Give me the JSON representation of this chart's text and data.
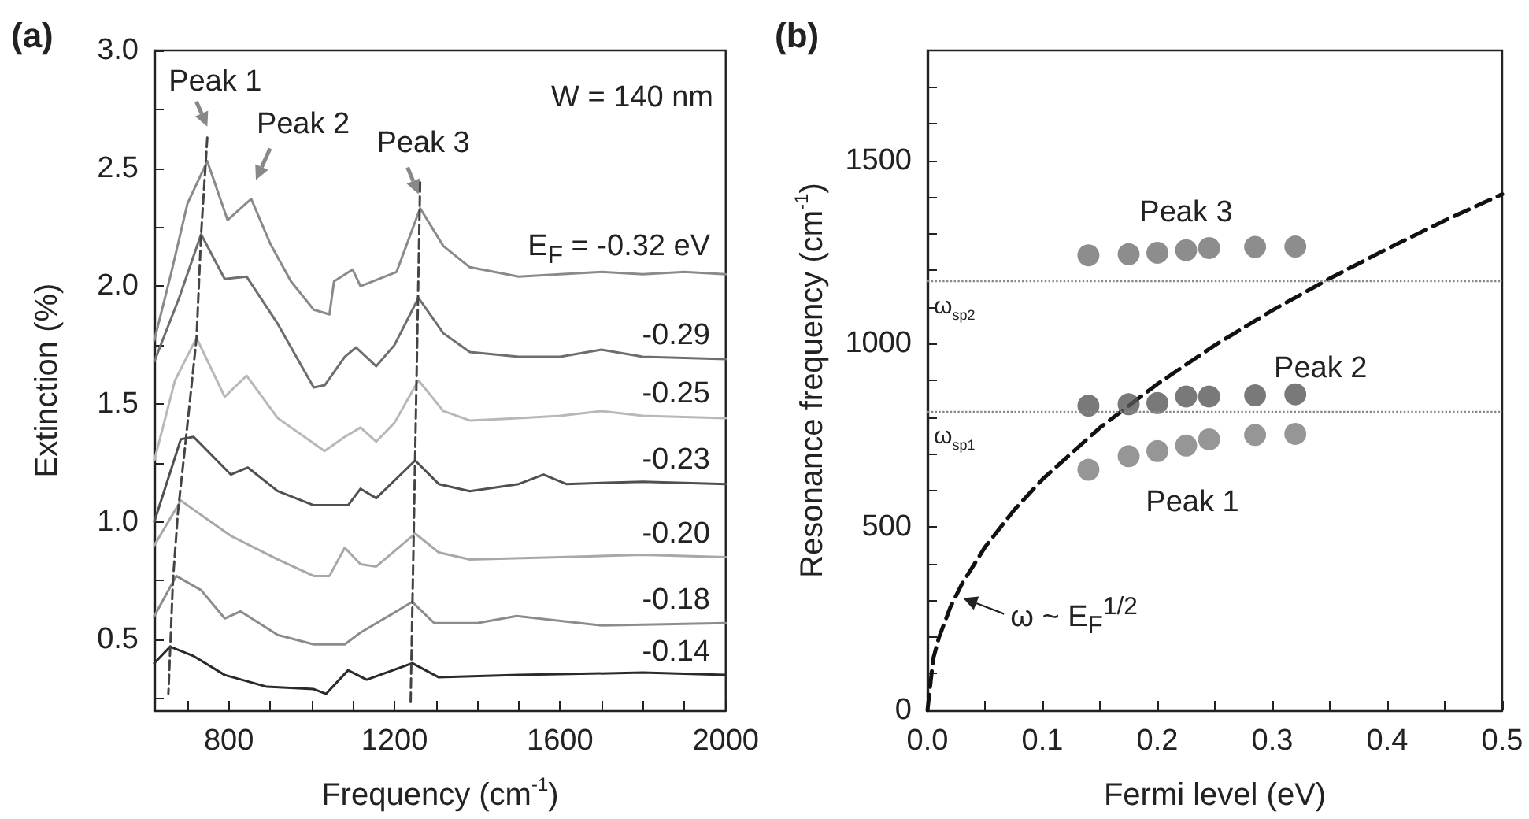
{
  "chart_data": [
    {
      "type": "line",
      "title": "(a)",
      "xlabel": "Frequency (cm$^{-1}$)",
      "ylabel": "Extinction (%)",
      "xlim": [
        620,
        2000
      ],
      "ylim": [
        0.2,
        3.0
      ],
      "xticks": [
        {
          "value": 700,
          "label": null
        },
        800,
        {
          "value": 900,
          "label": null
        },
        {
          "value": 1000,
          "label": null
        },
        {
          "value": 1100,
          "label": null
        },
        1200,
        {
          "value": 1300,
          "label": null
        },
        {
          "value": 1400,
          "label": null
        },
        {
          "value": 1500,
          "label": null
        },
        1600,
        {
          "value": 1700,
          "label": null
        },
        {
          "value": 1800,
          "label": null
        },
        {
          "value": 1900,
          "label": null
        },
        2000
      ],
      "yticks": [
        {
          "value": 0.25,
          "label": null
        },
        0.5,
        {
          "value": 0.75,
          "label": null
        },
        {
          "value": 1,
          "label": "1.0"
        },
        {
          "value": 1.25,
          "label": null
        },
        1.5,
        {
          "value": 1.75,
          "label": null
        },
        {
          "value": 2,
          "label": "2.0"
        },
        {
          "value": 2.25,
          "label": null
        },
        2.5,
        {
          "value": 2.75,
          "label": null
        },
        {
          "value": 3,
          "label": "3.0"
        }
      ],
      "marker": "none",
      "annotations": [
        {
          "text": "Peak 1",
          "x": 748,
          "y": 2.53
        },
        {
          "text": "Peak 2",
          "x": 854,
          "y": 2.37
        },
        {
          "text": "Peak 3",
          "x": 1262,
          "y": 2.33
        },
        "W = 140 nm"
      ],
      "series": [
        {
          "name": "E$_{F}$ = -0.32 eV",
          "color": "#8a8a8a",
          "x": [
            620,
            660,
            700,
            748,
            797,
            854,
            900,
            950,
            1005,
            1043,
            1054,
            1099,
            1118,
            1205,
            1262,
            1318,
            1382,
            1500,
            1600,
            1700,
            1800,
            1900,
            2000
          ],
          "values": [
            1.77,
            2.05,
            2.35,
            2.53,
            2.28,
            2.37,
            2.18,
            2.02,
            1.9,
            1.88,
            2.02,
            2.07,
            2.0,
            2.06,
            2.33,
            2.17,
            2.08,
            2.04,
            2.05,
            2.06,
            2.05,
            2.06,
            2.05
          ]
        },
        {
          "name": "-0.29",
          "color": "#6e6e6e",
          "x": [
            620,
            680,
            733,
            790,
            843,
            918,
            1005,
            1032,
            1080,
            1107,
            1156,
            1200,
            1258,
            1318,
            1382,
            1500,
            1600,
            1700,
            1800,
            2000
          ],
          "values": [
            1.68,
            1.95,
            2.22,
            2.03,
            2.04,
            1.84,
            1.57,
            1.58,
            1.7,
            1.74,
            1.66,
            1.75,
            1.95,
            1.8,
            1.72,
            1.7,
            1.7,
            1.73,
            1.7,
            1.69
          ]
        },
        {
          "name": "-0.25",
          "color": "#b8b8b8",
          "x": [
            620,
            670,
            722,
            790,
            843,
            918,
            1031,
            1080,
            1118,
            1156,
            1200,
            1258,
            1318,
            1382,
            1500,
            1600,
            1700,
            1800,
            2000
          ],
          "values": [
            1.26,
            1.6,
            1.78,
            1.53,
            1.62,
            1.44,
            1.3,
            1.36,
            1.4,
            1.34,
            1.42,
            1.6,
            1.47,
            1.43,
            1.44,
            1.45,
            1.47,
            1.45,
            1.44
          ]
        },
        {
          "name": "-0.23",
          "color": "#505050",
          "x": [
            620,
            684,
            715,
            805,
            846,
            918,
            1005,
            1088,
            1118,
            1156,
            1250,
            1307,
            1382,
            1500,
            1560,
            1615,
            1800,
            2000
          ],
          "values": [
            1.0,
            1.35,
            1.36,
            1.2,
            1.23,
            1.13,
            1.07,
            1.07,
            1.14,
            1.1,
            1.26,
            1.16,
            1.13,
            1.16,
            1.2,
            1.16,
            1.17,
            1.16
          ]
        },
        {
          "name": "-0.20",
          "color": "#a8a8a8",
          "x": [
            620,
            684,
            805,
            918,
            1005,
            1043,
            1080,
            1118,
            1156,
            1250,
            1307,
            1382,
            1600,
            1800,
            2000
          ],
          "values": [
            0.9,
            1.09,
            0.94,
            0.84,
            0.77,
            0.77,
            0.89,
            0.82,
            0.81,
            0.95,
            0.87,
            0.84,
            0.85,
            0.86,
            0.85
          ]
        },
        {
          "name": "-0.18",
          "color": "#8c8c8c",
          "x": [
            620,
            673,
            733,
            790,
            828,
            918,
            1005,
            1080,
            1118,
            1243,
            1296,
            1400,
            1495,
            1700,
            2000
          ],
          "values": [
            0.6,
            0.77,
            0.71,
            0.59,
            0.62,
            0.52,
            0.48,
            0.48,
            0.53,
            0.66,
            0.57,
            0.57,
            0.6,
            0.56,
            0.57
          ]
        },
        {
          "name": "-0.14",
          "color": "#2a2a2a",
          "x": [
            620,
            658,
            715,
            790,
            892,
            1005,
            1035,
            1088,
            1133,
            1243,
            1307,
            1500,
            1800,
            2000
          ],
          "values": [
            0.4,
            0.47,
            0.43,
            0.35,
            0.3,
            0.29,
            0.27,
            0.37,
            0.33,
            0.4,
            0.34,
            0.35,
            0.36,
            0.35
          ]
        },
        {
          "color": "#444444",
          "line_style": "dashed",
          "x": [
            748,
            733,
            722,
            695,
            677,
            665,
            654
          ],
          "values": [
            2.63,
            2.22,
            1.78,
            1.33,
            1.04,
            0.75,
            0.27
          ]
        },
        {
          "color": "#444444",
          "line_style": "dashed",
          "x": [
            1262,
            1239
          ],
          "values": [
            2.44,
            0.23
          ]
        }
      ]
    },
    {
      "type": "scatter",
      "title": "(b)",
      "xlabel": "Fermi level (eV)",
      "ylabel": "Resonance frequency (cm$^{-1}$)",
      "xlim": [
        0,
        0.5
      ],
      "ylim": [
        0,
        1800
      ],
      "xticks": [
        {
          "value": 0,
          "label": "0.0"
        },
        {
          "value": 0.05,
          "label": null
        },
        0.1,
        {
          "value": 0.15,
          "label": null
        },
        0.2,
        {
          "value": 0.25,
          "label": null
        },
        0.3,
        {
          "value": 0.35,
          "label": null
        },
        0.4,
        {
          "value": 0.45,
          "label": null
        },
        0.5
      ],
      "yticks": [
        0,
        {
          "value": 100,
          "label": null
        },
        {
          "value": 200,
          "label": null
        },
        {
          "value": 300,
          "label": null
        },
        {
          "value": 400,
          "label": null
        },
        500,
        {
          "value": 600,
          "label": null
        },
        {
          "value": 700,
          "label": null
        },
        {
          "value": 800,
          "label": null
        },
        {
          "value": 900,
          "label": null
        },
        1000,
        {
          "value": 1100,
          "label": null
        },
        {
          "value": 1200,
          "label": null
        },
        {
          "value": 1300,
          "label": null
        },
        {
          "value": 1400,
          "label": null
        },
        1500,
        {
          "value": 1600,
          "label": null
        },
        {
          "value": 1700,
          "label": null
        }
      ],
      "marker": "circle",
      "annotations": [
        {
          "text": "ω ~ E$_{F}$$^{1/2}$",
          "x": 0.031,
          "y": 306
        }
      ],
      "ref_lines": [
        {
          "axis": "y",
          "value": 1170,
          "label": "ω$_{sp2}$",
          "color": "#888888",
          "line_style": "dotted"
        },
        {
          "axis": "y",
          "value": 817,
          "label": "ω$_{sp1}$",
          "color": "#888888",
          "line_style": "dotted"
        }
      ],
      "series": [
        {
          "name": "Peak 3",
          "color": "#707070",
          "x": [
            0.14,
            0.175,
            0.2,
            0.225,
            0.245,
            0.285,
            0.32
          ],
          "values": [
            1241,
            1244,
            1248,
            1255,
            1261,
            1264,
            1265
          ]
        },
        {
          "name": "Peak 2",
          "color": "#585858",
          "x": [
            0.14,
            0.175,
            0.2,
            0.225,
            0.245,
            0.285,
            0.32
          ],
          "values": [
            831,
            835,
            838,
            856,
            856,
            859,
            862
          ]
        },
        {
          "name": "Peak 1",
          "color": "#7c7c7c",
          "x": [
            0.14,
            0.175,
            0.2,
            0.225,
            0.245,
            0.285,
            0.32
          ],
          "values": [
            656,
            693,
            707,
            722,
            739,
            751,
            754
          ]
        },
        {
          "type": "line",
          "marker": "none",
          "line_style": "dashed",
          "color": "#111111",
          "x": [
            0,
            0.005,
            0.01,
            0.02,
            0.03,
            0.05,
            0.075,
            0.1,
            0.15,
            0.2,
            0.25,
            0.3,
            0.35,
            0.4,
            0.45,
            0.5
          ],
          "values": [
            0,
            141,
            199,
            282,
            345,
            445,
            545,
            630,
            771,
            890,
            996,
            1091,
            1178,
            1259,
            1336,
            1408
          ]
        }
      ]
    }
  ]
}
